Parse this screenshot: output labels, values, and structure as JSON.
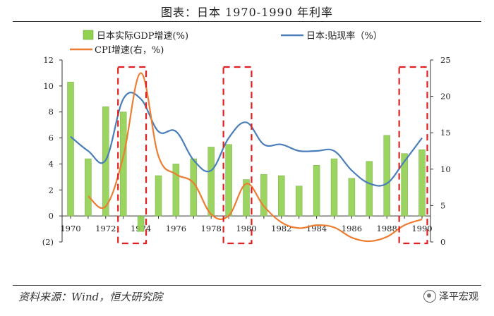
{
  "header": {
    "title": "图表：日本 1970-1990 年利率"
  },
  "footer": {
    "source": "资料来源：Wind，恒大研究院",
    "brand": "泽平宏观"
  },
  "colors": {
    "bar": "#92d050",
    "bar_edge": "#6aa83a",
    "discount": "#4a7ebb",
    "cpi": "#ed7d31",
    "highlight": "#e02020"
  },
  "chart_data": {
    "type": "bar+line",
    "title": "图表：日本 1970-1990 年利率",
    "x": [
      1970,
      1971,
      1972,
      1973,
      1974,
      1975,
      1976,
      1977,
      1978,
      1979,
      1980,
      1981,
      1982,
      1983,
      1984,
      1985,
      1986,
      1987,
      1988,
      1989,
      1990
    ],
    "x_tick_labels": [
      "1970",
      "1972",
      "1974",
      "1976",
      "1978",
      "1980",
      "1982",
      "1984",
      "1986",
      "1988",
      "1990"
    ],
    "left_axis": {
      "ylim": [
        -2,
        12
      ],
      "ticks": [
        -2,
        0,
        2,
        4,
        6,
        8,
        10,
        12
      ],
      "tick_labels": [
        "(2)",
        "0",
        "2",
        "4",
        "6",
        "8",
        "10",
        "12"
      ]
    },
    "right_axis": {
      "ylim": [
        0,
        25
      ],
      "ticks": [
        0,
        5,
        10,
        15,
        20,
        25
      ],
      "tick_labels": [
        "0",
        "5",
        "10",
        "15",
        "20",
        "25"
      ]
    },
    "series": [
      {
        "name": "日本实际GDP增速(%)",
        "type": "bar",
        "axis": "left",
        "values": [
          10.3,
          4.4,
          8.4,
          8.0,
          -1.2,
          3.1,
          4.0,
          4.4,
          5.3,
          5.5,
          2.8,
          3.2,
          3.1,
          2.3,
          3.9,
          4.4,
          2.9,
          4.2,
          6.2,
          4.8,
          5.1
        ]
      },
      {
        "name": "日本:贴现率（%）",
        "type": "line",
        "axis": "left",
        "values": [
          6.1,
          5.0,
          4.3,
          9.0,
          9.0,
          6.5,
          6.5,
          4.3,
          3.5,
          6.0,
          7.2,
          5.5,
          5.5,
          5.0,
          5.0,
          5.0,
          3.5,
          2.5,
          2.5,
          4.2,
          6.0
        ]
      },
      {
        "name": "CPI增速(右，%)",
        "type": "line",
        "axis": "right",
        "values": [
          null,
          6.3,
          4.9,
          11.7,
          23.2,
          11.8,
          9.3,
          8.1,
          3.8,
          3.6,
          8.0,
          4.9,
          2.7,
          1.9,
          2.3,
          2.0,
          0.6,
          0.1,
          0.7,
          2.3,
          3.1
        ]
      }
    ],
    "highlight_years": [
      [
        1973,
        1974
      ],
      [
        1979,
        1980
      ],
      [
        1989,
        1990
      ]
    ],
    "legend": "top"
  }
}
